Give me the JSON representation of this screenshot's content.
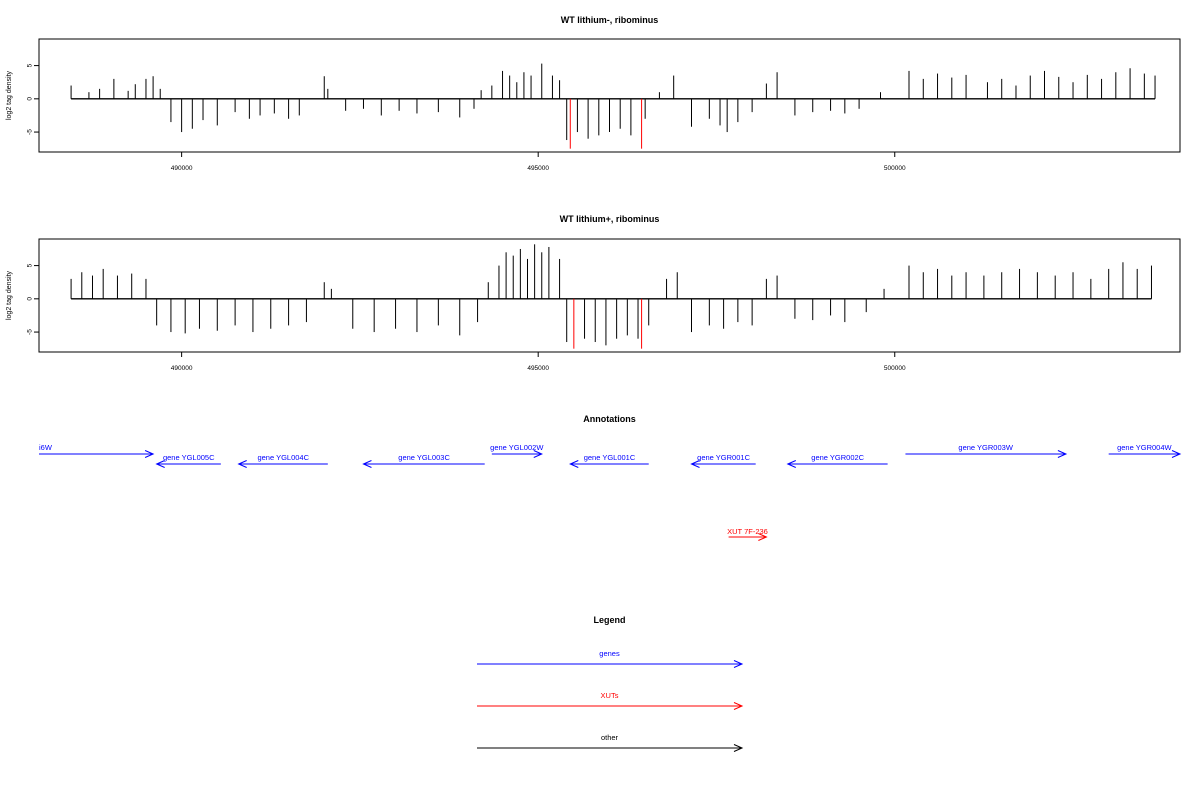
{
  "chart_data": [
    {
      "type": "bar",
      "title": "WT lithium-, ribominus",
      "xlabel": "",
      "ylabel": "log2 tag density",
      "xlim": [
        488000,
        504000
      ],
      "ylim": [
        -8,
        9
      ],
      "x_ticks": [
        490000,
        495000,
        500000
      ],
      "x_tick_labels": [
        "490000",
        "495000",
        "500000"
      ],
      "y_ticks": [
        -5,
        0,
        5
      ],
      "y_tick_labels": [
        "-5",
        "0",
        "5"
      ],
      "grid": false,
      "highlight_color": "#ff0000",
      "series": [
        {
          "values": [
            [
              488450,
              2.0
            ],
            [
              488700,
              1.0
            ],
            [
              488850,
              1.5
            ],
            [
              489050,
              3.0
            ],
            [
              489250,
              1.2
            ],
            [
              489350,
              2.2
            ],
            [
              489500,
              3.0
            ],
            [
              489600,
              3.4
            ],
            [
              489700,
              1.5
            ],
            [
              489850,
              -3.5
            ],
            [
              490000,
              -5.0
            ],
            [
              490150,
              -4.5
            ],
            [
              490300,
              -3.2
            ],
            [
              490500,
              -4.0
            ],
            [
              490750,
              -2.0
            ],
            [
              490950,
              -3.0
            ],
            [
              491100,
              -2.5
            ],
            [
              491300,
              -2.2
            ],
            [
              491500,
              -3.0
            ],
            [
              491650,
              -2.5
            ],
            [
              492000,
              3.4
            ],
            [
              492050,
              1.5
            ],
            [
              492300,
              -1.8
            ],
            [
              492550,
              -1.5
            ],
            [
              492800,
              -2.5
            ],
            [
              493050,
              -1.8
            ],
            [
              493300,
              -2.2
            ],
            [
              493600,
              -2.0
            ],
            [
              493900,
              -2.8
            ],
            [
              494100,
              -1.5
            ],
            [
              494200,
              1.3
            ],
            [
              494350,
              2.0
            ],
            [
              494500,
              4.2
            ],
            [
              494600,
              3.5
            ],
            [
              494700,
              2.5
            ],
            [
              494800,
              4.0
            ],
            [
              494900,
              3.5
            ],
            [
              495050,
              5.3
            ],
            [
              495200,
              3.5
            ],
            [
              495300,
              2.8
            ],
            [
              495400,
              -6.2
            ],
            [
              495450,
              -7.5
            ],
            [
              495550,
              -5.0
            ],
            [
              495700,
              -6.0
            ],
            [
              495850,
              -5.5
            ],
            [
              496000,
              -5.0
            ],
            [
              496150,
              -4.5
            ],
            [
              496300,
              -5.5
            ],
            [
              496450,
              -7.5
            ],
            [
              496500,
              -3.0
            ],
            [
              496700,
              1.0
            ],
            [
              496900,
              3.5
            ],
            [
              497150,
              -4.2
            ],
            [
              497400,
              -3.0
            ],
            [
              497550,
              -4.0
            ],
            [
              497650,
              -5.0
            ],
            [
              497800,
              -3.5
            ],
            [
              498000,
              -2.0
            ],
            [
              498200,
              2.3
            ],
            [
              498350,
              4.0
            ],
            [
              498600,
              -2.5
            ],
            [
              498850,
              -2.0
            ],
            [
              499100,
              -1.8
            ],
            [
              499300,
              -2.2
            ],
            [
              499500,
              -1.5
            ],
            [
              499800,
              1.0
            ],
            [
              500200,
              4.2
            ],
            [
              500400,
              3.0
            ],
            [
              500600,
              3.8
            ],
            [
              500800,
              3.2
            ],
            [
              501000,
              3.6
            ],
            [
              501300,
              2.5
            ],
            [
              501500,
              3.0
            ],
            [
              501700,
              2.0
            ],
            [
              501900,
              3.5
            ],
            [
              502100,
              4.2
            ],
            [
              502300,
              3.3
            ],
            [
              502500,
              2.5
            ],
            [
              502700,
              3.6
            ],
            [
              502900,
              3.0
            ],
            [
              503100,
              4.0
            ],
            [
              503300,
              4.6
            ],
            [
              503500,
              3.8
            ],
            [
              503650,
              3.5
            ]
          ]
        }
      ],
      "highlight_x": [
        495450,
        496450
      ]
    },
    {
      "type": "bar",
      "title": "WT lithium+, ribominus",
      "xlabel": "",
      "ylabel": "log2 tag density",
      "xlim": [
        488000,
        504000
      ],
      "ylim": [
        -8,
        9
      ],
      "x_ticks": [
        490000,
        495000,
        500000
      ],
      "x_tick_labels": [
        "490000",
        "495000",
        "500000"
      ],
      "y_ticks": [
        -5,
        0,
        5
      ],
      "y_tick_labels": [
        "-5",
        "0",
        "5"
      ],
      "grid": false,
      "highlight_color": "#ff0000",
      "series": [
        {
          "values": [
            [
              488450,
              3.0
            ],
            [
              488600,
              4.0
            ],
            [
              488750,
              3.5
            ],
            [
              488900,
              4.5
            ],
            [
              489100,
              3.5
            ],
            [
              489300,
              3.8
            ],
            [
              489500,
              3.0
            ],
            [
              489650,
              -4.0
            ],
            [
              489850,
              -5.0
            ],
            [
              490050,
              -5.2
            ],
            [
              490250,
              -4.5
            ],
            [
              490500,
              -4.8
            ],
            [
              490750,
              -4.0
            ],
            [
              491000,
              -5.0
            ],
            [
              491250,
              -4.5
            ],
            [
              491500,
              -4.0
            ],
            [
              491750,
              -3.5
            ],
            [
              492000,
              2.5
            ],
            [
              492100,
              1.5
            ],
            [
              492400,
              -4.5
            ],
            [
              492700,
              -5.0
            ],
            [
              493000,
              -4.5
            ],
            [
              493300,
              -5.0
            ],
            [
              493600,
              -4.0
            ],
            [
              493900,
              -5.5
            ],
            [
              494150,
              -3.5
            ],
            [
              494300,
              2.5
            ],
            [
              494450,
              5.0
            ],
            [
              494550,
              7.0
            ],
            [
              494650,
              6.5
            ],
            [
              494750,
              7.5
            ],
            [
              494850,
              6.0
            ],
            [
              494950,
              8.2
            ],
            [
              495050,
              7.0
            ],
            [
              495150,
              7.8
            ],
            [
              495300,
              6.0
            ],
            [
              495400,
              -6.5
            ],
            [
              495500,
              -7.5
            ],
            [
              495650,
              -6.0
            ],
            [
              495800,
              -6.5
            ],
            [
              495950,
              -7.0
            ],
            [
              496100,
              -6.0
            ],
            [
              496250,
              -5.5
            ],
            [
              496400,
              -6.0
            ],
            [
              496450,
              -7.5
            ],
            [
              496550,
              -4.0
            ],
            [
              496800,
              3.0
            ],
            [
              496950,
              4.0
            ],
            [
              497150,
              -5.0
            ],
            [
              497400,
              -4.0
            ],
            [
              497600,
              -4.5
            ],
            [
              497800,
              -3.5
            ],
            [
              498000,
              -4.0
            ],
            [
              498200,
              3.0
            ],
            [
              498350,
              3.5
            ],
            [
              498600,
              -3.0
            ],
            [
              498850,
              -3.2
            ],
            [
              499100,
              -2.5
            ],
            [
              499300,
              -3.5
            ],
            [
              499600,
              -2.0
            ],
            [
              499850,
              1.5
            ],
            [
              500200,
              5.0
            ],
            [
              500400,
              4.0
            ],
            [
              500600,
              4.5
            ],
            [
              500800,
              3.5
            ],
            [
              501000,
              4.0
            ],
            [
              501250,
              3.5
            ],
            [
              501500,
              4.0
            ],
            [
              501750,
              4.5
            ],
            [
              502000,
              4.0
            ],
            [
              502250,
              3.5
            ],
            [
              502500,
              4.0
            ],
            [
              502750,
              3.0
            ],
            [
              503000,
              4.5
            ],
            [
              503200,
              5.5
            ],
            [
              503400,
              4.5
            ],
            [
              503600,
              5.0
            ]
          ]
        }
      ],
      "highlight_x": [
        495500,
        496450
      ]
    }
  ],
  "annotations": {
    "title": "Annotations",
    "genes_color": "#0000ff",
    "xut_color": "#ff0000",
    "genes": [
      {
        "label": "i6W",
        "start": 487900,
        "end": 489600,
        "strand": "+"
      },
      {
        "label": "gene YGL005C",
        "start": 489650,
        "end": 490550,
        "strand": "-"
      },
      {
        "label": "gene YGL004C",
        "start": 490800,
        "end": 492050,
        "strand": "-"
      },
      {
        "label": "gene YGL003C",
        "start": 492550,
        "end": 494250,
        "strand": "-"
      },
      {
        "label": "gene YGL002W",
        "start": 494350,
        "end": 495050,
        "strand": "+"
      },
      {
        "label": "gene YGL001C",
        "start": 495450,
        "end": 496550,
        "strand": "-"
      },
      {
        "label": "gene YGR001C",
        "start": 497150,
        "end": 498050,
        "strand": "-"
      },
      {
        "label": "gene YGR002C",
        "start": 498500,
        "end": 499900,
        "strand": "-"
      },
      {
        "label": "gene YGR003W",
        "start": 500150,
        "end": 502400,
        "strand": "+"
      },
      {
        "label": "gene YGR004W",
        "start": 503000,
        "end": 504200,
        "strand": "+"
      }
    ],
    "xuts": [
      {
        "label": "XUT 7F-236",
        "start": 497670,
        "end": 498200,
        "strand": "+"
      }
    ]
  },
  "legend": {
    "title": "Legend",
    "items": [
      {
        "label": "genes",
        "color": "#0000ff"
      },
      {
        "label": "XUTs",
        "color": "#ff0000"
      },
      {
        "label": "other",
        "color": "#000000"
      }
    ]
  }
}
